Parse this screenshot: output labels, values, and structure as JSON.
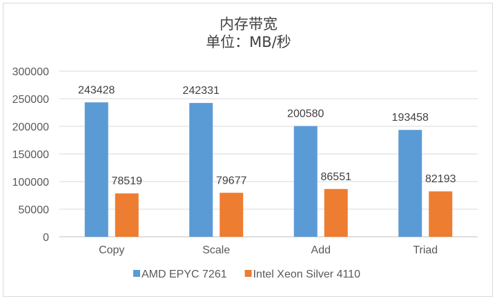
{
  "chart_data": {
    "type": "bar",
    "title": "内存带宽",
    "subtitle": "单位：MB/秒",
    "categories": [
      "Copy",
      "Scale",
      "Add",
      "Triad"
    ],
    "series": [
      {
        "name": "AMD EPYC 7261",
        "values": [
          243428,
          242331,
          200580,
          193458
        ],
        "color": "#5b9bd5"
      },
      {
        "name": "Intel Xeon Silver 4110",
        "values": [
          78519,
          79677,
          86551,
          82193
        ],
        "color": "#ed7d31"
      }
    ],
    "yticks": [
      "0",
      "50000",
      "100000",
      "150000",
      "200000",
      "250000",
      "300000"
    ],
    "ylim": [
      0,
      300000
    ],
    "grid": true,
    "legend_position": "bottom"
  }
}
